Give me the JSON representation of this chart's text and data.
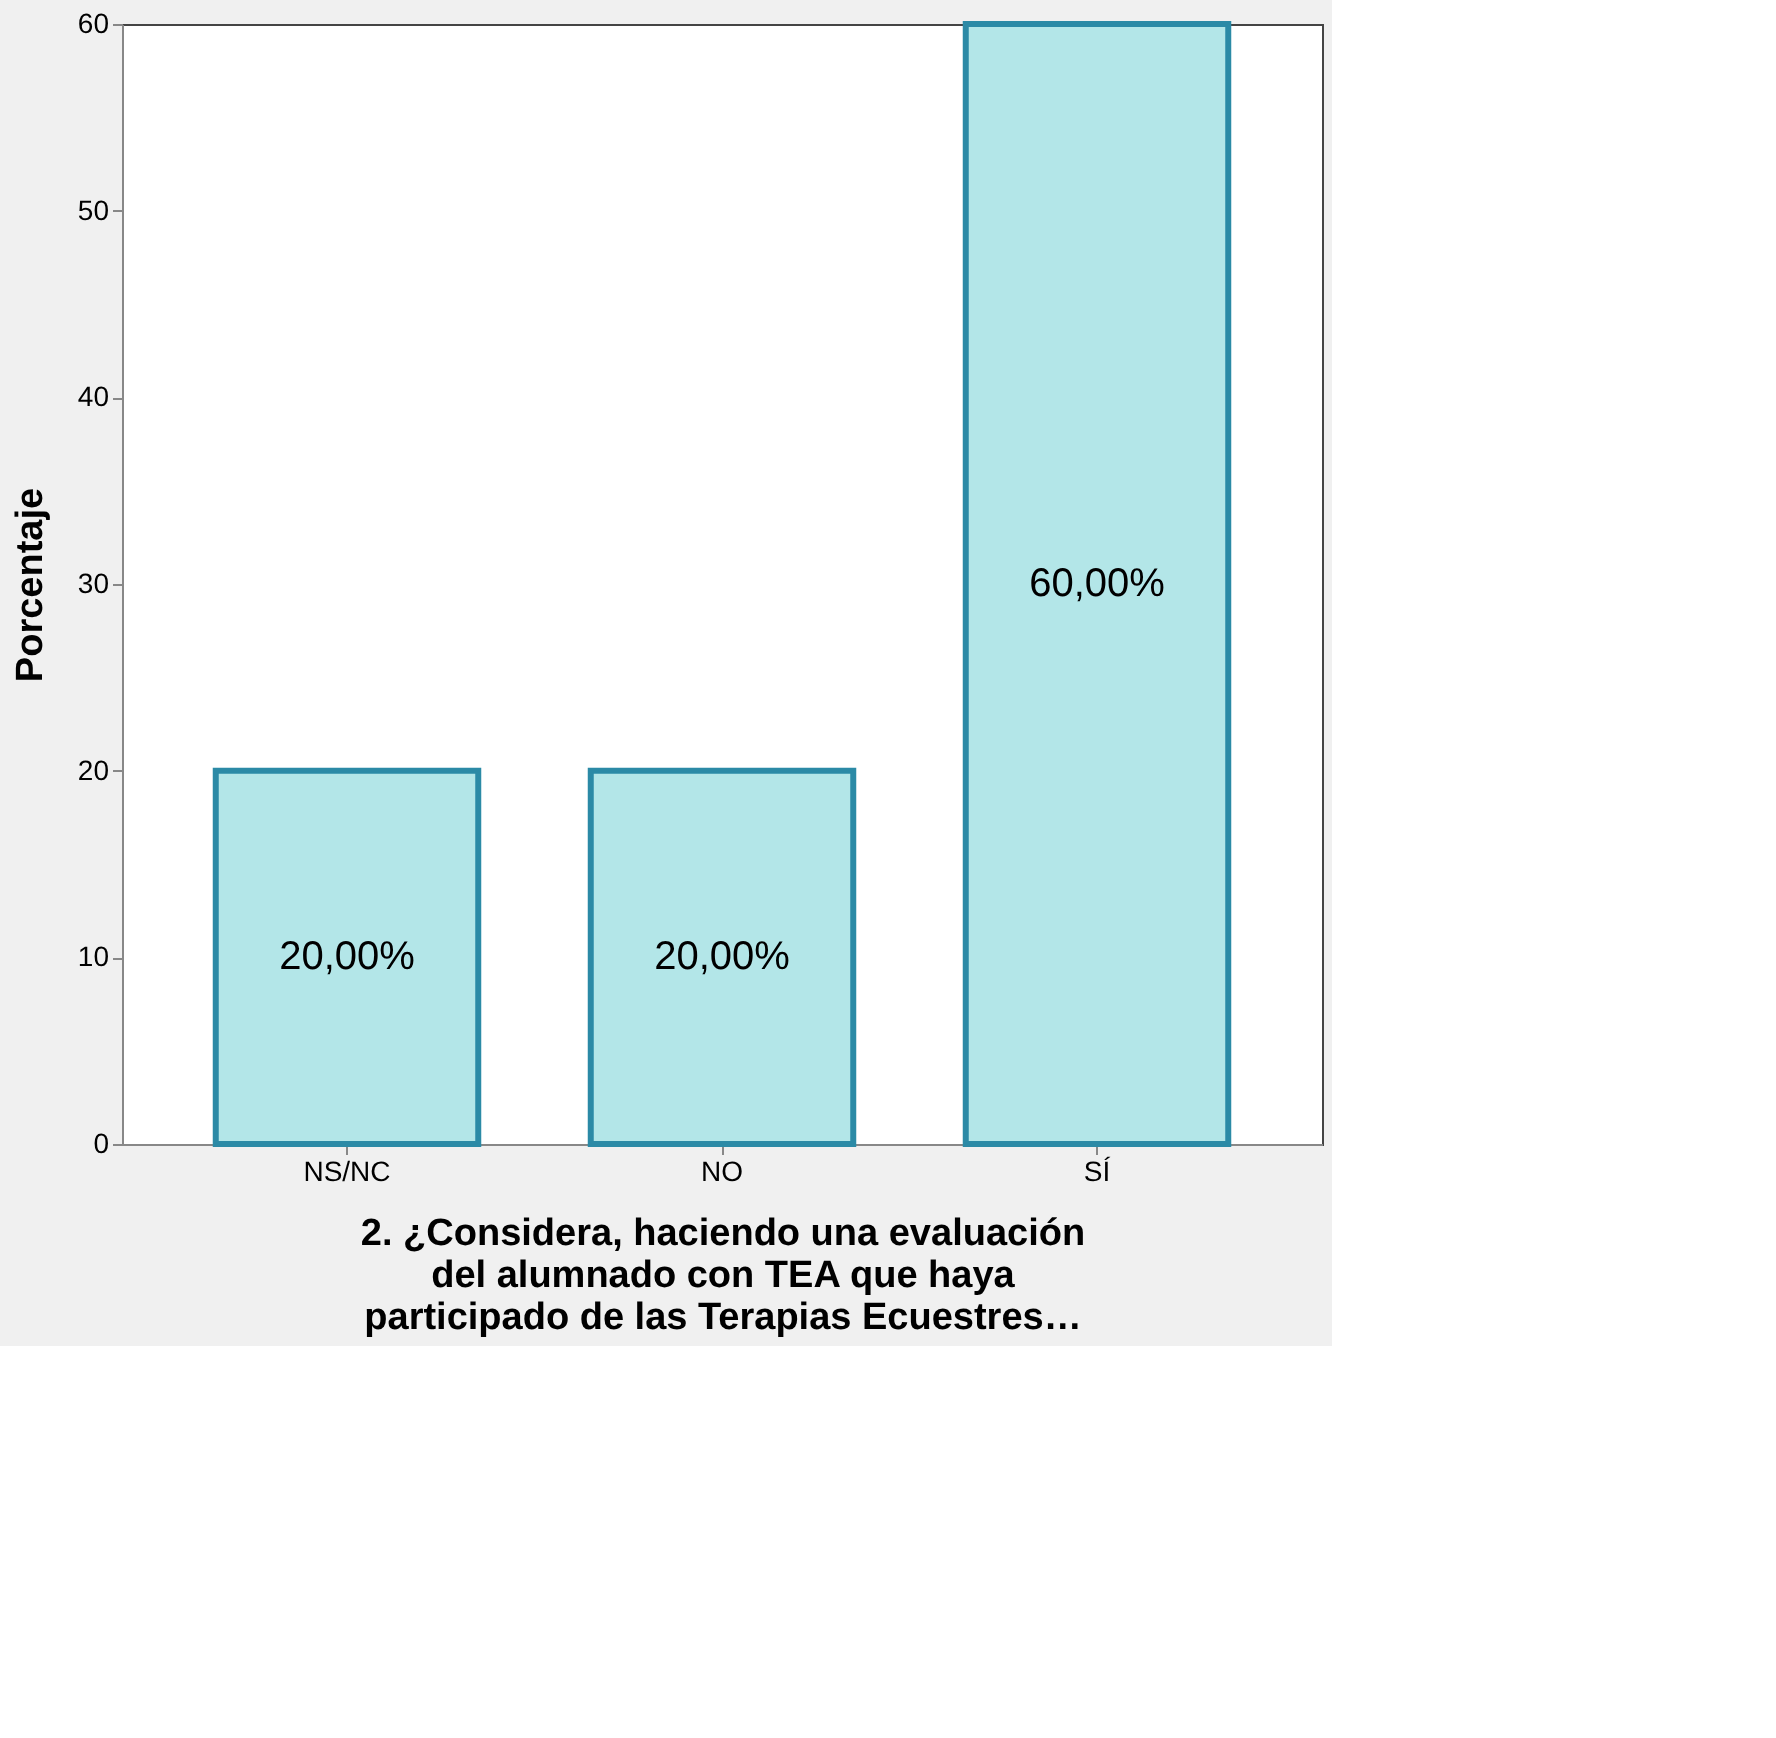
{
  "chart_data": {
    "type": "bar",
    "xlabel": "2. ¿Considera, haciendo una evaluación\ndel alumnado con TEA que haya\nparticipado de las Terapias Ecuestres…",
    "ylabel": "Porcentaje",
    "categories": [
      "NS/NC",
      "NO",
      "SÍ"
    ],
    "values": [
      20,
      20,
      60
    ],
    "value_labels": [
      "20,00%",
      "20,00%",
      "60,00%"
    ],
    "color": "#b3e6e8",
    "ylim": [
      0,
      60
    ],
    "yticks": [
      0,
      10,
      20,
      30,
      40,
      50,
      60
    ],
    "grid": false
  }
}
